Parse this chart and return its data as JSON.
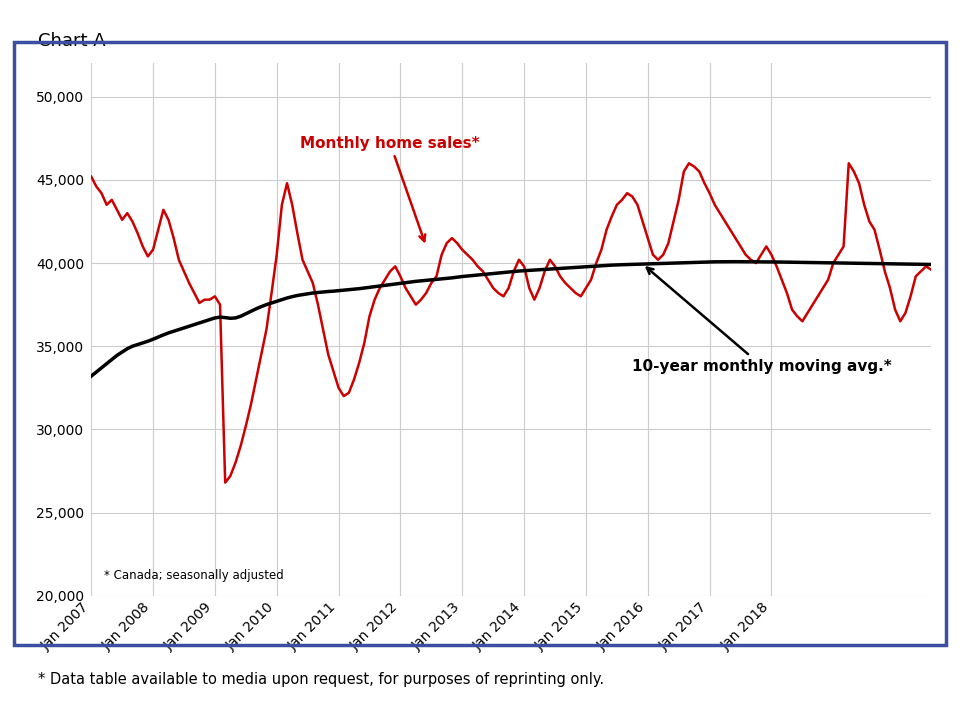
{
  "title": "Chart A",
  "subtitle": "* Canada; seasonally adjusted",
  "footer": "* Data table available to media upon request, for purposes of reprinting only.",
  "ylim": [
    20000,
    52000
  ],
  "yticks": [
    20000,
    25000,
    30000,
    35000,
    40000,
    45000,
    50000
  ],
  "background_color": "#ffffff",
  "grid_color": "#cccccc",
  "border_color": "#3a4fa0",
  "monthly_color": "#cc0000",
  "moving_avg_color": "#000000",
  "annotation_monthly": "Monthly home sales*",
  "annotation_moving": "10-year monthly moving avg.*",
  "monthly_sales": [
    45200,
    44600,
    44200,
    43500,
    43800,
    43200,
    42600,
    43000,
    42500,
    41800,
    41000,
    40400,
    40800,
    42000,
    43200,
    42600,
    41500,
    40200,
    39500,
    38800,
    38200,
    37600,
    37800,
    37800,
    38000,
    37500,
    26800,
    27200,
    28000,
    29000,
    30200,
    31500,
    33000,
    34500,
    36000,
    38200,
    40500,
    43500,
    44800,
    43500,
    41800,
    40200,
    39500,
    38800,
    37500,
    36000,
    34500,
    33500,
    32500,
    32000,
    32200,
    33000,
    34000,
    35200,
    36800,
    37800,
    38500,
    39000,
    39500,
    39800,
    39200,
    38500,
    38000,
    37500,
    37800,
    38200,
    38800,
    39200,
    40500,
    41200,
    41500,
    41200,
    40800,
    40500,
    40200,
    39800,
    39500,
    39000,
    38500,
    38200,
    38000,
    38500,
    39500,
    40200,
    39800,
    38500,
    37800,
    38500,
    39500,
    40200,
    39800,
    39200,
    38800,
    38500,
    38200,
    38000,
    38500,
    39000,
    40000,
    40800,
    42000,
    42800,
    43500,
    43800,
    44200,
    44000,
    43500,
    42500,
    41500,
    40500,
    40200,
    40500,
    41200,
    42500,
    43800,
    45500,
    46000,
    45800,
    45500,
    44800,
    44200,
    43500,
    43000,
    42500,
    42000,
    41500,
    41000,
    40500,
    40200,
    40000,
    40500,
    41000,
    40500,
    39800,
    39000,
    38200,
    37200,
    36800,
    36500,
    37000,
    37500,
    38000,
    38500,
    39000,
    40000,
    40500,
    41000,
    46000,
    45500,
    44800,
    43500,
    42500,
    42000,
    40800,
    39500,
    38500,
    37200,
    36500,
    37000,
    38000,
    39200,
    39500,
    39800,
    39600
  ],
  "moving_avg": [
    33200,
    33450,
    33700,
    33950,
    34200,
    34450,
    34650,
    34850,
    35000,
    35100,
    35200,
    35300,
    35420,
    35550,
    35680,
    35800,
    35900,
    36000,
    36100,
    36200,
    36300,
    36400,
    36500,
    36600,
    36700,
    36750,
    36720,
    36680,
    36700,
    36800,
    36950,
    37100,
    37250,
    37380,
    37500,
    37600,
    37700,
    37800,
    37900,
    37980,
    38050,
    38100,
    38150,
    38200,
    38230,
    38260,
    38290,
    38310,
    38340,
    38370,
    38400,
    38430,
    38460,
    38500,
    38540,
    38580,
    38620,
    38660,
    38700,
    38740,
    38780,
    38820,
    38860,
    38900,
    38930,
    38960,
    38990,
    39020,
    39050,
    39080,
    39110,
    39150,
    39190,
    39220,
    39250,
    39280,
    39310,
    39340,
    39370,
    39400,
    39430,
    39460,
    39490,
    39520,
    39540,
    39560,
    39580,
    39600,
    39620,
    39640,
    39660,
    39680,
    39700,
    39720,
    39740,
    39760,
    39780,
    39800,
    39820,
    39840,
    39860,
    39875,
    39890,
    39900,
    39910,
    39920,
    39930,
    39940,
    39950,
    39960,
    39970,
    39980,
    39990,
    40000,
    40010,
    40020,
    40030,
    40040,
    40050,
    40060,
    40070,
    40075,
    40078,
    40080,
    40082,
    40083,
    40082,
    40080,
    40078,
    40075,
    40072,
    40070,
    40068,
    40065,
    40060,
    40055,
    40050,
    40045,
    40040,
    40035,
    40030,
    40025,
    40020,
    40015,
    40010,
    40005,
    40000,
    39995,
    39990,
    39985,
    39980,
    39975,
    39970,
    39965,
    39960,
    39955,
    39950,
    39945,
    39940,
    39935,
    39930,
    39925,
    39920,
    39915
  ],
  "xtick_positions": [
    0,
    12,
    24,
    36,
    48,
    60,
    72,
    84,
    96,
    108,
    120,
    132
  ],
  "xtick_labels": [
    "Jan 2007",
    "Jan 2008",
    "Jan 2009",
    "Jan 2010",
    "Jan 2011",
    "Jan 2012",
    "Jan 2013",
    "Jan 2014",
    "Jan 2015",
    "Jan 2016",
    "Jan 2017",
    "Jan 2018"
  ]
}
